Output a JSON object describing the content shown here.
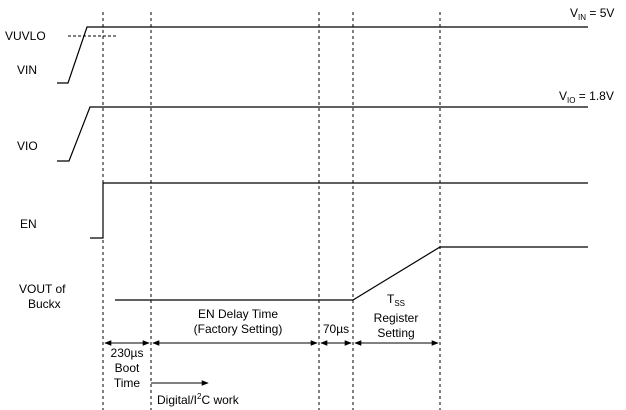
{
  "signals": {
    "vuvlo": "VUVLO",
    "vin": "VIN",
    "vio": "VIO",
    "en": "EN",
    "vout_line1": "VOUT of",
    "vout_line2": "Buckx"
  },
  "levels": {
    "vin_main": "V",
    "vin_sub": "IN",
    "vin_value": " = 5V",
    "vio_main": "V",
    "vio_sub": "IO",
    "vio_value": " = 1.8V"
  },
  "intervals": {
    "boot_line1": "230µs",
    "boot_line2": "Boot",
    "boot_line3": "Time",
    "en_delay_line1": "EN Delay Time",
    "en_delay_line2": "(Factory Setting)",
    "gap": "70µs",
    "tss_main": "T",
    "tss_sub": "SS",
    "tss_line2": "Register",
    "tss_line3": "Setting"
  },
  "annotations": {
    "digital_prefix": "Digital/I",
    "digital_sup": "2",
    "digital_suffix": "C work"
  }
}
